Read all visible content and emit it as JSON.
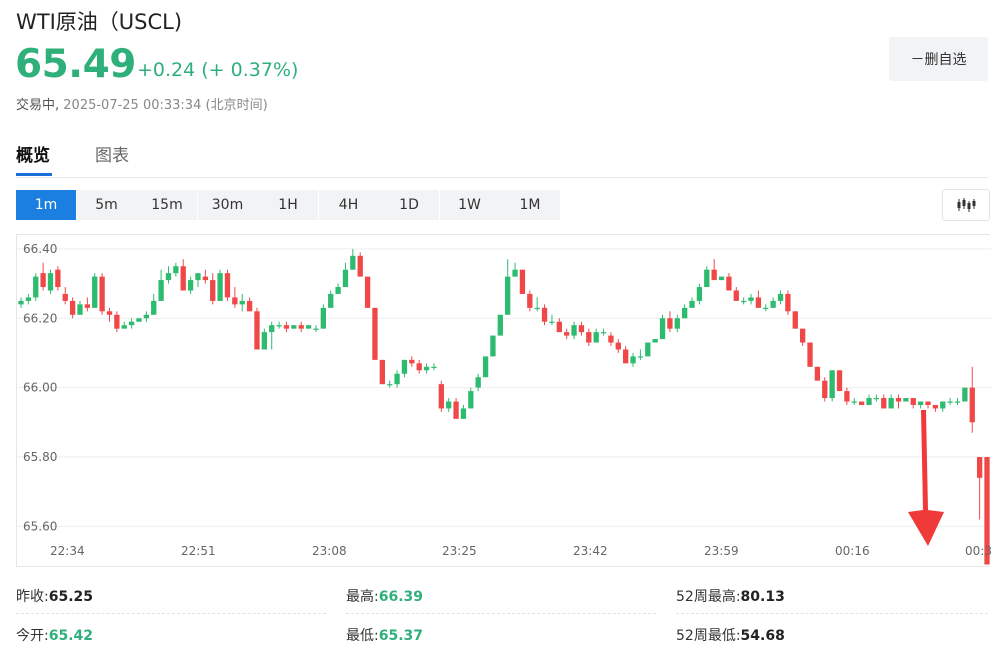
{
  "header": {
    "title": "WTI原油（USCL)",
    "price": "65.49",
    "change": "+0.24 (+ 0.37%)",
    "status_label": "交易中,",
    "timestamp": "2025-07-25 00:33:34",
    "timezone": "(北京时间)",
    "watch_button": "－删自选"
  },
  "tabs": [
    {
      "label": "概览",
      "active": true
    },
    {
      "label": "图表",
      "active": false
    }
  ],
  "intervals": [
    {
      "label": "1m",
      "active": true
    },
    {
      "label": "5m",
      "active": false
    },
    {
      "label": "15m",
      "active": false
    },
    {
      "label": "30m",
      "active": false
    },
    {
      "label": "1H",
      "active": false
    },
    {
      "label": "4H",
      "active": false
    },
    {
      "label": "1D",
      "active": false
    },
    {
      "label": "1W",
      "active": false
    },
    {
      "label": "1M",
      "active": false
    }
  ],
  "chart_icon": "candlestick-icon",
  "colors": {
    "up": "#2dbb6f",
    "down": "#f04848",
    "accent": "#1a7fe0",
    "price": "#2fb07a"
  },
  "chart_data": {
    "type": "candlestick",
    "y_ticks": [
      "66.40",
      "66.20",
      "66.00",
      "65.80",
      "65.60"
    ],
    "x_ticks": [
      "22:34",
      "22:51",
      "23:08",
      "23:25",
      "23:42",
      "23:59",
      "00:16",
      "00:3"
    ],
    "ylim": [
      65.48,
      66.44
    ],
    "grid": true,
    "candles": [
      [
        66.24,
        66.26,
        66.23,
        66.25
      ],
      [
        66.25,
        66.27,
        66.24,
        66.26
      ],
      [
        66.26,
        66.33,
        66.25,
        66.32
      ],
      [
        66.33,
        66.36,
        66.28,
        66.29
      ],
      [
        66.28,
        66.34,
        66.27,
        66.33
      ],
      [
        66.34,
        66.35,
        66.28,
        66.29
      ],
      [
        66.27,
        66.29,
        66.24,
        66.25
      ],
      [
        66.25,
        66.26,
        66.2,
        66.21
      ],
      [
        66.21,
        66.25,
        66.21,
        66.24
      ],
      [
        66.24,
        66.26,
        66.22,
        66.23
      ],
      [
        66.23,
        66.33,
        66.23,
        66.32
      ],
      [
        66.32,
        66.33,
        66.21,
        66.22
      ],
      [
        66.22,
        66.23,
        66.19,
        66.21
      ],
      [
        66.21,
        66.22,
        66.16,
        66.17
      ],
      [
        66.17,
        66.19,
        66.17,
        66.18
      ],
      [
        66.18,
        66.2,
        66.17,
        66.19
      ],
      [
        66.19,
        66.2,
        66.19,
        66.2
      ],
      [
        66.2,
        66.22,
        66.19,
        66.21
      ],
      [
        66.21,
        66.27,
        66.21,
        66.25
      ],
      [
        66.25,
        66.34,
        66.25,
        66.31
      ],
      [
        66.31,
        66.35,
        66.3,
        66.33
      ],
      [
        66.33,
        66.36,
        66.32,
        66.35
      ],
      [
        66.35,
        66.37,
        66.28,
        66.28
      ],
      [
        66.28,
        66.32,
        66.27,
        66.31
      ],
      [
        66.31,
        66.33,
        66.29,
        66.33
      ],
      [
        66.32,
        66.34,
        66.3,
        66.31
      ],
      [
        66.31,
        66.33,
        66.24,
        66.25
      ],
      [
        66.25,
        66.34,
        66.25,
        66.33
      ],
      [
        66.33,
        66.34,
        66.25,
        66.26
      ],
      [
        66.26,
        66.29,
        66.23,
        66.24
      ],
      [
        66.24,
        66.27,
        66.22,
        66.25
      ],
      [
        66.25,
        66.26,
        66.22,
        66.22
      ],
      [
        66.22,
        66.23,
        66.11,
        66.11
      ],
      [
        66.11,
        66.17,
        66.11,
        66.16
      ],
      [
        66.16,
        66.19,
        66.11,
        66.18
      ],
      [
        66.18,
        66.19,
        66.17,
        66.18
      ],
      [
        66.18,
        66.19,
        66.16,
        66.17
      ],
      [
        66.17,
        66.18,
        66.17,
        66.18
      ],
      [
        66.18,
        66.19,
        66.16,
        66.17
      ],
      [
        66.17,
        66.18,
        66.17,
        66.18
      ],
      [
        66.17,
        66.18,
        66.16,
        66.17
      ],
      [
        66.17,
        66.24,
        66.17,
        66.23
      ],
      [
        66.23,
        66.28,
        66.23,
        66.27
      ],
      [
        66.27,
        66.3,
        66.27,
        66.29
      ],
      [
        66.29,
        66.36,
        66.29,
        66.34
      ],
      [
        66.34,
        66.4,
        66.34,
        66.38
      ],
      [
        66.38,
        66.39,
        66.32,
        66.32
      ],
      [
        66.32,
        66.32,
        66.23,
        66.23
      ],
      [
        66.23,
        66.23,
        66.08,
        66.08
      ],
      [
        66.08,
        66.08,
        66.01,
        66.01
      ],
      [
        66.01,
        66.02,
        66.0,
        66.01
      ],
      [
        66.01,
        66.05,
        66.0,
        66.04
      ],
      [
        66.04,
        66.08,
        66.03,
        66.08
      ],
      [
        66.08,
        66.09,
        66.06,
        66.07
      ],
      [
        66.07,
        66.08,
        66.04,
        66.05
      ],
      [
        66.05,
        66.07,
        66.04,
        66.06
      ],
      [
        66.06,
        66.07,
        66.05,
        66.06
      ],
      [
        66.01,
        66.02,
        65.93,
        65.94
      ],
      [
        65.94,
        65.97,
        65.93,
        65.96
      ],
      [
        65.96,
        65.97,
        65.91,
        65.91
      ],
      [
        65.91,
        65.95,
        65.91,
        65.94
      ],
      [
        65.94,
        66.0,
        65.94,
        65.99
      ],
      [
        66.0,
        66.04,
        65.99,
        66.03
      ],
      [
        66.03,
        66.09,
        66.03,
        66.09
      ],
      [
        66.09,
        66.15,
        66.09,
        66.15
      ],
      [
        66.15,
        66.21,
        66.15,
        66.21
      ],
      [
        66.21,
        66.37,
        66.21,
        66.32
      ],
      [
        66.32,
        66.36,
        66.32,
        66.34
      ],
      [
        66.34,
        66.34,
        66.27,
        66.27
      ],
      [
        66.27,
        66.28,
        66.22,
        66.23
      ],
      [
        66.23,
        66.26,
        66.22,
        66.23
      ],
      [
        66.23,
        66.24,
        66.18,
        66.19
      ],
      [
        66.19,
        66.21,
        66.18,
        66.19
      ],
      [
        66.19,
        66.2,
        66.16,
        66.16
      ],
      [
        66.16,
        66.17,
        66.14,
        66.15
      ],
      [
        66.15,
        66.19,
        66.14,
        66.18
      ],
      [
        66.18,
        66.19,
        66.15,
        66.16
      ],
      [
        66.16,
        66.17,
        66.12,
        66.13
      ],
      [
        66.13,
        66.17,
        66.13,
        66.16
      ],
      [
        66.16,
        66.17,
        66.15,
        66.16
      ],
      [
        66.15,
        66.16,
        66.12,
        66.13
      ],
      [
        66.13,
        66.14,
        66.1,
        66.11
      ],
      [
        66.11,
        66.12,
        66.07,
        66.07
      ],
      [
        66.07,
        66.1,
        66.06,
        66.09
      ],
      [
        66.09,
        66.11,
        66.08,
        66.09
      ],
      [
        66.09,
        66.13,
        66.09,
        66.13
      ],
      [
        66.13,
        66.14,
        66.13,
        66.14
      ],
      [
        66.14,
        66.21,
        66.14,
        66.2
      ],
      [
        66.2,
        66.22,
        66.16,
        66.17
      ],
      [
        66.17,
        66.21,
        66.16,
        66.2
      ],
      [
        66.2,
        66.24,
        66.2,
        66.23
      ],
      [
        66.23,
        66.26,
        66.23,
        66.25
      ],
      [
        66.25,
        66.3,
        66.24,
        66.29
      ],
      [
        66.29,
        66.35,
        66.29,
        66.34
      ],
      [
        66.34,
        66.37,
        66.31,
        66.31
      ],
      [
        66.31,
        66.32,
        66.31,
        66.32
      ],
      [
        66.32,
        66.33,
        66.28,
        66.28
      ],
      [
        66.28,
        66.29,
        66.25,
        66.25
      ],
      [
        66.25,
        66.26,
        66.24,
        66.25
      ],
      [
        66.25,
        66.27,
        66.24,
        66.26
      ],
      [
        66.26,
        66.28,
        66.23,
        66.23
      ],
      [
        66.23,
        66.24,
        66.22,
        66.23
      ],
      [
        66.23,
        66.26,
        66.23,
        66.25
      ],
      [
        66.25,
        66.28,
        66.24,
        66.27
      ],
      [
        66.27,
        66.28,
        66.21,
        66.22
      ],
      [
        66.22,
        66.22,
        66.17,
        66.17
      ],
      [
        66.17,
        66.17,
        66.12,
        66.13
      ],
      [
        66.13,
        66.13,
        66.06,
        66.06
      ],
      [
        66.06,
        66.06,
        66.02,
        66.02
      ],
      [
        66.02,
        66.03,
        65.96,
        65.97
      ],
      [
        65.97,
        66.05,
        65.96,
        66.05
      ],
      [
        66.05,
        66.05,
        65.99,
        65.99
      ],
      [
        65.99,
        66.0,
        65.95,
        65.96
      ],
      [
        65.96,
        65.97,
        65.95,
        65.96
      ],
      [
        65.96,
        65.96,
        65.95,
        65.95
      ],
      [
        65.95,
        65.98,
        65.95,
        65.97
      ],
      [
        65.97,
        65.98,
        65.96,
        65.97
      ],
      [
        65.97,
        65.98,
        65.94,
        65.94
      ],
      [
        65.94,
        65.98,
        65.94,
        65.97
      ],
      [
        65.97,
        65.98,
        65.94,
        65.96
      ],
      [
        65.96,
        65.97,
        65.96,
        65.97
      ],
      [
        65.97,
        65.97,
        65.94,
        65.95
      ],
      [
        65.95,
        65.96,
        65.94,
        65.96
      ],
      [
        65.96,
        65.96,
        65.94,
        65.95
      ],
      [
        65.95,
        65.95,
        65.93,
        65.94
      ],
      [
        65.94,
        65.96,
        65.93,
        65.96
      ],
      [
        65.96,
        65.97,
        65.95,
        65.96
      ],
      [
        65.96,
        65.97,
        65.95,
        65.96
      ],
      [
        65.96,
        66.0,
        65.96,
        66.0
      ],
      [
        66.0,
        66.06,
        65.87,
        65.9
      ],
      [
        65.8,
        65.8,
        65.62,
        65.74
      ],
      [
        65.8,
        65.8,
        65.49,
        65.49
      ]
    ]
  },
  "stats": {
    "prev_close_label": "昨收:",
    "prev_close": "65.25",
    "high_label": "最高:",
    "high": "66.39",
    "w52_high_label": "52周最高:",
    "w52_high": "80.13",
    "open_label": "今开:",
    "open": "65.42",
    "low_label": "最低:",
    "low": "65.37",
    "w52_low_label": "52周最低:",
    "w52_low": "54.68"
  }
}
